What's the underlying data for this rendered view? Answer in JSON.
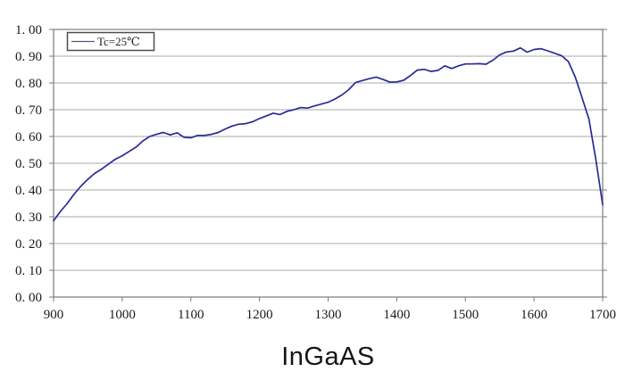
{
  "chart_data": {
    "type": "line",
    "title": "InGaAS",
    "xlabel": "",
    "ylabel": "",
    "grid": "horizontal",
    "legend": {
      "label": "Tc=25℃",
      "position": "top-left-inside"
    },
    "x_axis": {
      "min": 900,
      "max": 1700,
      "tick_values": [
        900,
        1000,
        1100,
        1200,
        1300,
        1400,
        1500,
        1600,
        1700
      ],
      "tick_labels": [
        "900",
        "1000",
        "1100",
        "1200",
        "1300",
        "1400",
        "1500",
        "1600",
        "1700"
      ]
    },
    "y_axis": {
      "min": 0.0,
      "max": 1.0,
      "tick_values": [
        1.0,
        0.9,
        0.8,
        0.7,
        0.6,
        0.5,
        0.4,
        0.3,
        0.2,
        0.1,
        0.0
      ],
      "tick_labels": [
        "1. 00",
        "0. 90",
        "0. 80",
        "0. 70",
        "0. 60",
        "0. 50",
        "0. 40",
        "0. 30",
        "0. 20",
        "0. 10",
        "0. 00"
      ]
    },
    "series": [
      {
        "name": "Tc=25℃",
        "color": "#2a2a99",
        "x": [
          900,
          910,
          920,
          930,
          940,
          950,
          960,
          970,
          980,
          990,
          1000,
          1010,
          1020,
          1030,
          1040,
          1050,
          1060,
          1070,
          1080,
          1090,
          1100,
          1110,
          1120,
          1130,
          1140,
          1150,
          1160,
          1170,
          1180,
          1190,
          1200,
          1210,
          1220,
          1230,
          1240,
          1250,
          1260,
          1270,
          1280,
          1290,
          1300,
          1310,
          1320,
          1330,
          1340,
          1350,
          1360,
          1370,
          1380,
          1390,
          1400,
          1410,
          1420,
          1430,
          1440,
          1450,
          1460,
          1470,
          1480,
          1490,
          1500,
          1510,
          1520,
          1530,
          1540,
          1550,
          1560,
          1570,
          1580,
          1590,
          1600,
          1610,
          1620,
          1630,
          1640,
          1650,
          1660,
          1670,
          1680,
          1690,
          1700
        ],
        "y": [
          0.285,
          0.32,
          0.35,
          0.385,
          0.415,
          0.44,
          0.462,
          0.478,
          0.497,
          0.515,
          0.528,
          0.544,
          0.56,
          0.583,
          0.6,
          0.608,
          0.615,
          0.606,
          0.614,
          0.597,
          0.595,
          0.604,
          0.604,
          0.608,
          0.615,
          0.628,
          0.639,
          0.646,
          0.648,
          0.655,
          0.667,
          0.677,
          0.687,
          0.682,
          0.694,
          0.7,
          0.708,
          0.706,
          0.714,
          0.721,
          0.728,
          0.74,
          0.755,
          0.775,
          0.802,
          0.809,
          0.816,
          0.822,
          0.813,
          0.803,
          0.804,
          0.81,
          0.828,
          0.848,
          0.851,
          0.843,
          0.847,
          0.864,
          0.854,
          0.864,
          0.871,
          0.871,
          0.872,
          0.87,
          0.885,
          0.905,
          0.916,
          0.919,
          0.931,
          0.915,
          0.925,
          0.928,
          0.92,
          0.911,
          0.902,
          0.88,
          0.822,
          0.745,
          0.665,
          0.515,
          0.345
        ]
      }
    ],
    "colors": {
      "line": "#2a2a99",
      "gridline": "#a8a8a8",
      "plot_border": "#7a7a7a",
      "tick": "#7a7a7a",
      "label_text": "#1a1a1a",
      "legend_border": "#4d4d4d",
      "background": "#ffffff"
    }
  }
}
